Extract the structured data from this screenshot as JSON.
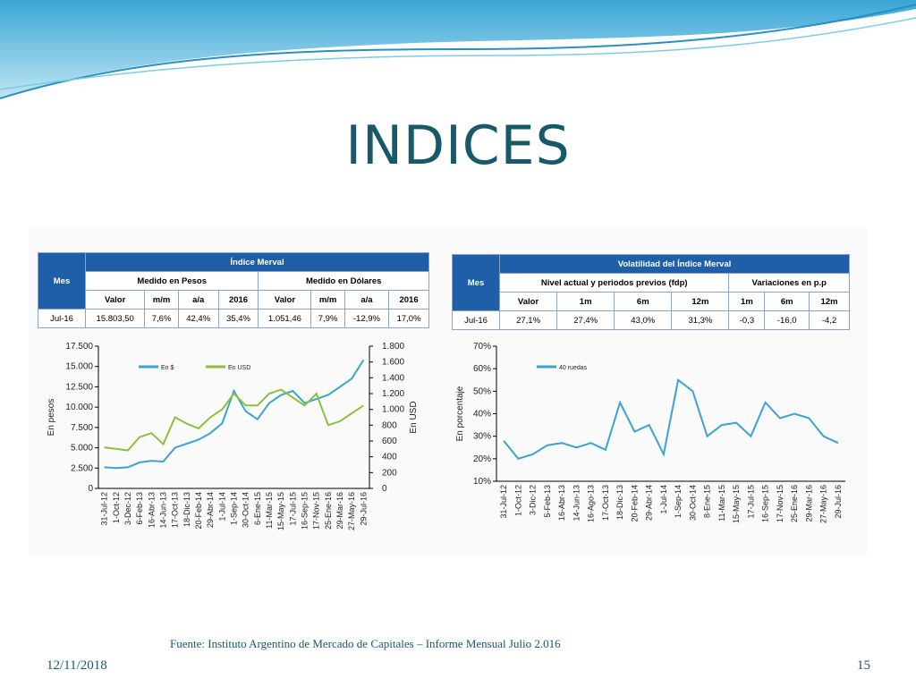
{
  "title": "INDICES",
  "tables": [
    {
      "title": "Índice Merval",
      "mes": "Mes",
      "groups": [
        "Medido en Pesos",
        "Medido en Dólares"
      ],
      "columns": [
        "Valor",
        "m/m",
        "a/a",
        "2016",
        "Valor",
        "m/m",
        "a/a",
        "2016"
      ],
      "row": [
        "Jul-16",
        "15.803,50",
        "7,6%",
        "42,4%",
        "35,4%",
        "1.051,46",
        "7,9%",
        "-12,9%",
        "17,0%"
      ]
    },
    {
      "title": "Volatilidad del Índice Merval",
      "mes": "Mes",
      "groups": [
        "Nivel actual y periodos previos (fdp)",
        "Variaciones en p.p"
      ],
      "columns": [
        "Valor",
        "1m",
        "6m",
        "12m",
        "1m",
        "6m",
        "12m"
      ],
      "row": [
        "Jul-16",
        "27,1%",
        "27,4%",
        "43,0%",
        "31,3%",
        "-0,3",
        "-16,0",
        "-4,2"
      ]
    }
  ],
  "chart_data": [
    {
      "type": "line",
      "ylabel": "En pesos",
      "y2label": "En USD",
      "categories": [
        "31-Jul-12",
        "1-Oct-12",
        "3-Dec-12",
        "6-Feb-13",
        "16-Abr-13",
        "14-Jun-13",
        "17-Oct-13",
        "18-Dic-13",
        "20-Feb-14",
        "29-Abr-14",
        "1-Jul-14",
        "1-Sep-14",
        "30-Oct-14",
        "6-Ene-15",
        "11-Mar-15",
        "15-May-15",
        "17-Jul-15",
        "16-Sep-15",
        "17-Nov-15",
        "25-Ene-16",
        "29-Mar-16",
        "27-May-16",
        "29-Jul-16"
      ],
      "series": [
        {
          "name": "En $",
          "color": "#3ba3d0",
          "values": [
            2600,
            2500,
            2600,
            3200,
            3400,
            3300,
            5000,
            5500,
            6000,
            6800,
            8000,
            12000,
            9500,
            8500,
            10500,
            11500,
            12000,
            10500,
            11000,
            11500,
            12500,
            13500,
            15800
          ]
        },
        {
          "name": "En USD",
          "color": "#8cbf3f",
          "axis": "y2",
          "values": [
            520,
            500,
            480,
            650,
            700,
            560,
            900,
            820,
            760,
            900,
            1000,
            1200,
            1050,
            1050,
            1200,
            1250,
            1150,
            1050,
            1200,
            800,
            850,
            950,
            1050
          ]
        }
      ],
      "ylim": [
        0,
        17500
      ],
      "yticks": [
        0,
        {
          "value": 2500,
          "label": "2.500"
        },
        {
          "value": 5000,
          "label": "5.000"
        },
        {
          "value": 7500,
          "label": "7.500"
        },
        {
          "value": 10000,
          "label": "10.000"
        },
        {
          "value": 12500,
          "label": "12.500"
        },
        {
          "value": 15000,
          "label": "15.000"
        },
        {
          "value": 17500,
          "label": "17.500"
        }
      ],
      "y2lim": [
        0,
        1800
      ],
      "y2ticks": [
        0,
        200,
        400,
        600,
        800,
        {
          "value": 1000,
          "label": "1.000"
        },
        {
          "value": 1200,
          "label": "1.200"
        },
        {
          "value": 1400,
          "label": "1.400"
        },
        {
          "value": 1600,
          "label": "1.600"
        },
        {
          "value": 1800,
          "label": "1.800"
        }
      ]
    },
    {
      "type": "line",
      "ylabel": "En porcentaje",
      "categories": [
        "31-Jul-12",
        "1-Oct-12",
        "3-Dic-12",
        "5-Feb-13",
        "16-Abr-13",
        "14-Jun-13",
        "16-Ago-13",
        "17-Oct-13",
        "18-Dic-13",
        "20-Feb-14",
        "29-Abr-14",
        "1-Jul-14",
        "1-Sep-14",
        "30-Oct-14",
        "8-Ene-15",
        "11-Mar-15",
        "15-May-15",
        "17-Jul-15",
        "16-Sep-15",
        "17-Nov-15",
        "25-Ene-16",
        "29-Mar-16",
        "27-May-16",
        "29-Jul-16"
      ],
      "series": [
        {
          "name": "40 ruedas",
          "color": "#3ba3d0",
          "values": [
            28,
            20,
            22,
            26,
            27,
            25,
            27,
            24,
            45,
            32,
            35,
            22,
            55,
            50,
            30,
            35,
            36,
            30,
            45,
            38,
            40,
            38,
            30,
            27
          ]
        }
      ],
      "ylim": [
        10,
        70
      ],
      "yticks": [
        {
          "value": 10,
          "label": "10%"
        },
        {
          "value": 20,
          "label": "20%"
        },
        {
          "value": 30,
          "label": "30%"
        },
        {
          "value": 40,
          "label": "40%"
        },
        {
          "value": 50,
          "label": "50%"
        },
        {
          "value": 60,
          "label": "60%"
        },
        {
          "value": 70,
          "label": "70%"
        }
      ]
    }
  ],
  "footer": {
    "source": "Fuente: Instituto Argentino de Mercado de Capitales – Informe Mensual Julio 2.016",
    "date": "12/11/2018",
    "page": "15"
  }
}
